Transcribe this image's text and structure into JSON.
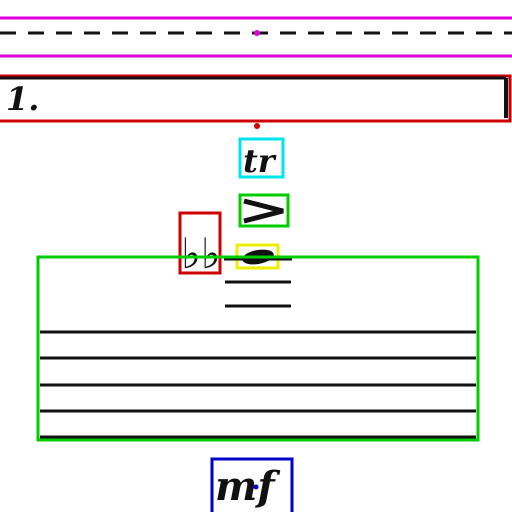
{
  "volta": {
    "label": "1."
  },
  "ornaments": {
    "trill": "tr",
    "accent": ">",
    "notehead": "●"
  },
  "accidental": {
    "symbol": "♭♭"
  },
  "dynamic": {
    "label": "mf"
  },
  "colors": {
    "dashed_box": "#dd00dd",
    "volta_box": "#cc0000",
    "trill_box": "#00e5ee",
    "accent_box": "#00cc00",
    "notehead_box": "#eeee00",
    "accidental_box": "#cc0000",
    "staff_box": "#00cc00",
    "dynamic_box": "#0000cc",
    "ink": "#111111"
  }
}
